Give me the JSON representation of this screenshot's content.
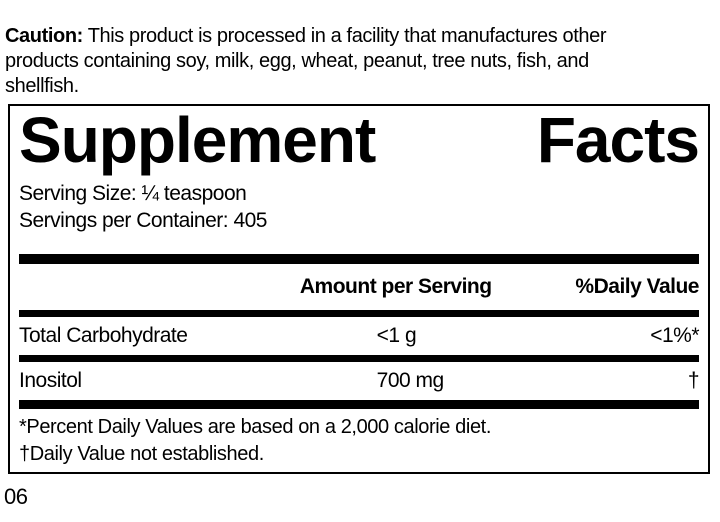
{
  "caution": {
    "label": "Caution:",
    "text": "This product is processed in a facility that manufactures other\nproducts containing soy, milk, egg, wheat, peanut, tree nuts, fish, and\nshellfish."
  },
  "panel": {
    "title": "Supplement Facts",
    "serving_size": "Serving Size: ¼ teaspoon",
    "servings_per_container": "Servings per Container: 405",
    "table": {
      "amount_header": "Amount per Serving",
      "dv_header": "%Daily Value",
      "rows": [
        {
          "name": "Total Carbohydrate",
          "amount": "<1 g",
          "daily_value": "<1%*"
        },
        {
          "name": "Inositol",
          "amount": "700 mg",
          "daily_value": "†"
        }
      ]
    },
    "footnotes": [
      "*Percent Daily Values are based on a 2,000 calorie diet.",
      "†Daily Value not established."
    ]
  },
  "footer": {
    "page_number": "06"
  },
  "colors": {
    "text": "#000000",
    "background": "#ffffff",
    "rule": "#000000"
  }
}
